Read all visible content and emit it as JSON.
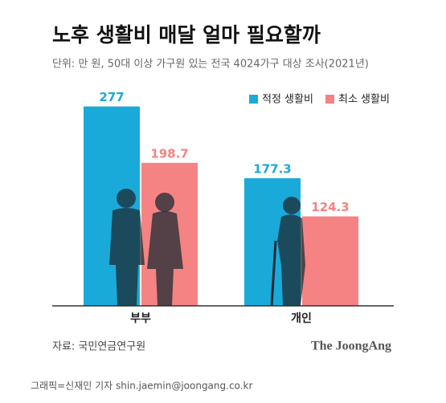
{
  "chart_data": {
    "type": "bar",
    "title": "노후 생활비 매달 얼마 필요할까",
    "subtitle": "단위: 만 원, 50대 이상 가구원 있는 전국 4024가구 대상 조사(2021년)",
    "categories": [
      "부부",
      "개인"
    ],
    "series": [
      {
        "name": "적정 생활비",
        "color": "#1aaad9",
        "values": [
          277,
          177.3
        ]
      },
      {
        "name": "최소 생활비",
        "color": "#f58383",
        "values": [
          198.7,
          124.3
        ]
      }
    ],
    "ylim": [
      0,
      300
    ],
    "legend": "top-right",
    "source": "자료: 국민연금연구원",
    "brand": "The JoongAng",
    "credit": "그래픽=신재민 기자 shin.jaemin@joongang.co.kr"
  }
}
